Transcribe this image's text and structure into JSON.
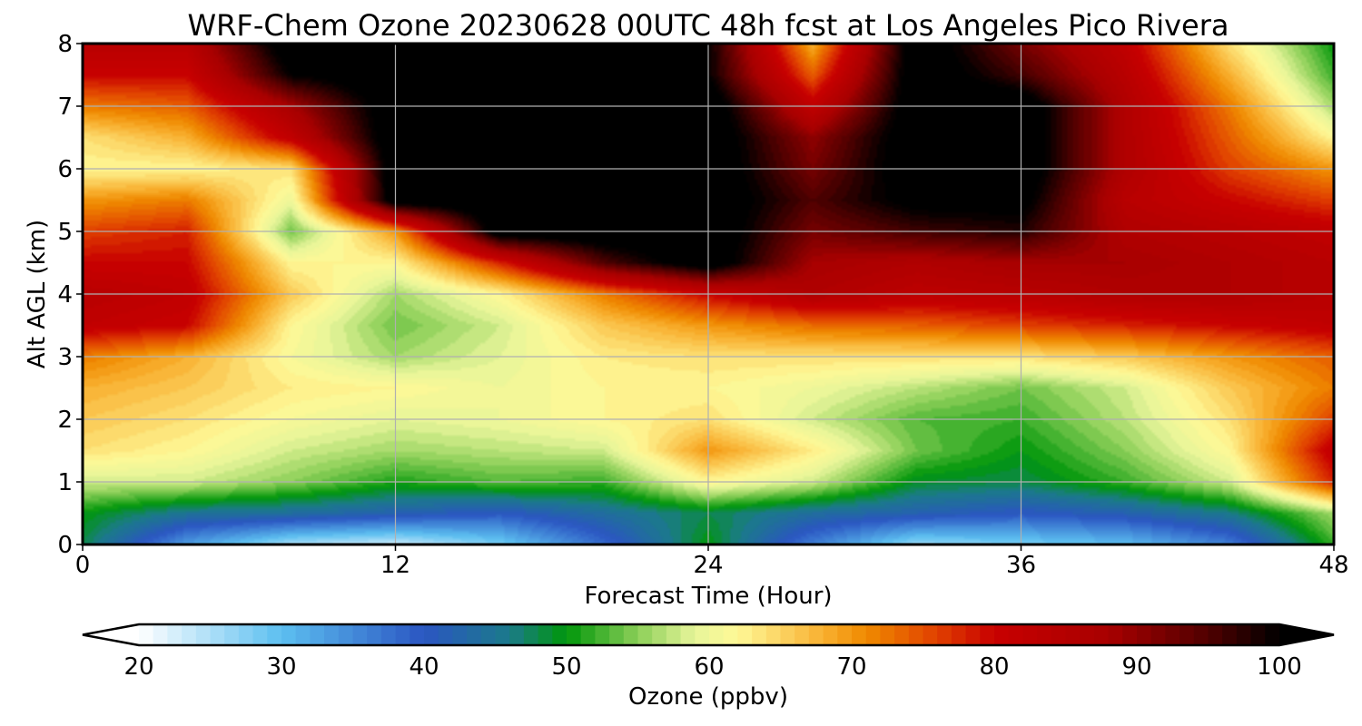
{
  "chart_data": {
    "type": "heatmap",
    "title": "WRF-Chem Ozone  20230628 00UTC 48h fcst at Los Angeles Pico Rivera",
    "xlabel": "Forecast Time (Hour)",
    "ylabel": "Alt AGL (km)",
    "xlim": [
      0,
      48
    ],
    "ylim": [
      0,
      8
    ],
    "xticks": [
      0,
      12,
      24,
      36,
      48
    ],
    "yticks": [
      0,
      1,
      2,
      3,
      4,
      5,
      6,
      7,
      8
    ],
    "grid": true,
    "x": [
      0,
      4,
      8,
      12,
      16,
      20,
      24,
      28,
      32,
      36,
      40,
      44,
      48
    ],
    "y": [
      0,
      0.5,
      1,
      1.5,
      2,
      2.5,
      3,
      3.5,
      4,
      4.5,
      5,
      5.5,
      6,
      6.5,
      7,
      7.5,
      8
    ],
    "z": [
      [
        48,
        33,
        25,
        23,
        28,
        38,
        50,
        36,
        26,
        28,
        30,
        36,
        52
      ],
      [
        50,
        45,
        44,
        42,
        40,
        44,
        48,
        44,
        42,
        40,
        42,
        46,
        56
      ],
      [
        58,
        58,
        55,
        51,
        53,
        52,
        62,
        58,
        49,
        48,
        52,
        58,
        78
      ],
      [
        64,
        62,
        58,
        56,
        57,
        58,
        70,
        63,
        54,
        50,
        55,
        62,
        82
      ],
      [
        66,
        64,
        61,
        59,
        60,
        62,
        64,
        58,
        53,
        52,
        57,
        64,
        76
      ],
      [
        68,
        66,
        63,
        62,
        60,
        62,
        62,
        60,
        57,
        54,
        58,
        66,
        72
      ],
      [
        72,
        68,
        61,
        56,
        59,
        63,
        64,
        64,
        64,
        64,
        66,
        70,
        74
      ],
      [
        82,
        80,
        62,
        54,
        58,
        66,
        70,
        73,
        74,
        76,
        78,
        80,
        82
      ],
      [
        84,
        82,
        66,
        56,
        62,
        72,
        80,
        86,
        83,
        84,
        86,
        86,
        84
      ],
      [
        80,
        80,
        62,
        62,
        78,
        95,
        104,
        88,
        86,
        88,
        88,
        86,
        84
      ],
      [
        76,
        78,
        54,
        70,
        104,
        104,
        104,
        92,
        96,
        98,
        86,
        84,
        82
      ],
      [
        70,
        72,
        60,
        104,
        104,
        104,
        104,
        95,
        102,
        102,
        84,
        80,
        76
      ],
      [
        62,
        62,
        64,
        104,
        104,
        104,
        104,
        92,
        104,
        104,
        86,
        76,
        70
      ],
      [
        64,
        68,
        82,
        104,
        104,
        104,
        104,
        90,
        104,
        104,
        86,
        74,
        62
      ],
      [
        72,
        74,
        88,
        104,
        104,
        104,
        104,
        82,
        104,
        104,
        86,
        72,
        56
      ],
      [
        80,
        80,
        100,
        104,
        104,
        104,
        100,
        74,
        104,
        96,
        84,
        68,
        52
      ],
      [
        84,
        84,
        104,
        104,
        104,
        104,
        100,
        68,
        104,
        92,
        82,
        64,
        50
      ]
    ],
    "colorbar": {
      "label": "Ozone  (ppbv)",
      "min": 20,
      "max": 100,
      "ticks": [
        20,
        30,
        40,
        50,
        60,
        70,
        80,
        90,
        100
      ],
      "extend": "both",
      "stops": [
        {
          "v": 20,
          "c": "#ffffff"
        },
        {
          "v": 30,
          "c": "#5cbff0"
        },
        {
          "v": 40,
          "c": "#2b56c2"
        },
        {
          "v": 46,
          "c": "#1b7a8a"
        },
        {
          "v": 50,
          "c": "#00960a"
        },
        {
          "v": 55,
          "c": "#8ccf58"
        },
        {
          "v": 59,
          "c": "#e7f59a"
        },
        {
          "v": 62,
          "c": "#fff896"
        },
        {
          "v": 68,
          "c": "#f8b030"
        },
        {
          "v": 71,
          "c": "#f08a00"
        },
        {
          "v": 76,
          "c": "#e04000"
        },
        {
          "v": 80,
          "c": "#c80000"
        },
        {
          "v": 88,
          "c": "#a80000"
        },
        {
          "v": 95,
          "c": "#500000"
        },
        {
          "v": 100,
          "c": "#000000"
        }
      ]
    }
  }
}
